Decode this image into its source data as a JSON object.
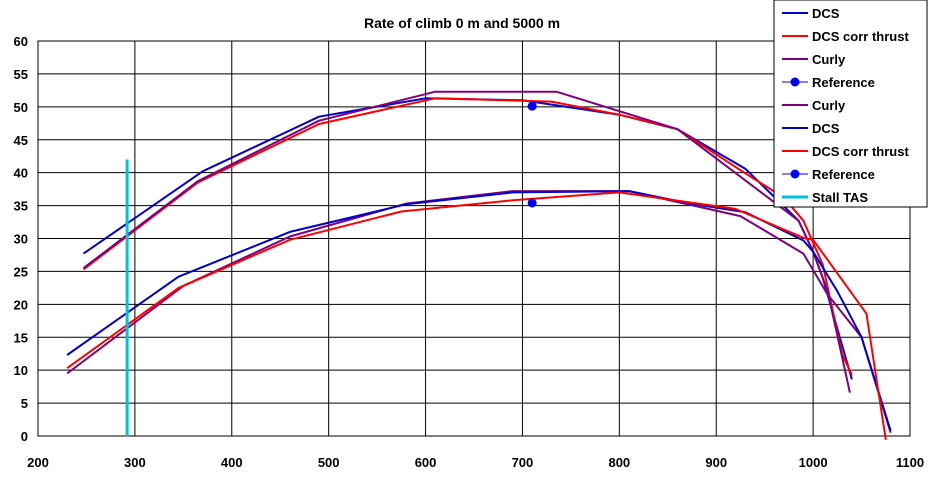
{
  "chart_data": {
    "type": "line",
    "title": "Rate of climb  0 m and 5000 m",
    "xlim": [
      200,
      1100
    ],
    "ylim": [
      0,
      60
    ],
    "x_ticks": [
      "200",
      "300",
      "400",
      "500",
      "600",
      "700",
      "800",
      "900",
      "1000",
      "1100"
    ],
    "y_ticks": [
      "0",
      "5",
      "10",
      "15",
      "20",
      "25",
      "30",
      "35",
      "40",
      "45",
      "50",
      "55",
      "60"
    ],
    "grid": true,
    "legend_position": "top-right",
    "series": [
      {
        "name": "DCS",
        "color": "#0000cc",
        "style": "line",
        "points": [
          [
            247,
            27.7
          ],
          [
            370,
            40.2
          ],
          [
            490,
            48.5
          ],
          [
            600,
            51.3
          ],
          [
            700,
            51.0
          ],
          [
            800,
            48.8
          ],
          [
            860,
            46.6
          ],
          [
            930,
            40.6
          ],
          [
            985,
            32.7
          ],
          [
            1000,
            28.0
          ],
          [
            1010,
            24.0
          ],
          [
            1040,
            8.6
          ]
        ]
      },
      {
        "name": "DCS corr thrust",
        "color": "#ff0000",
        "style": "line",
        "points": [
          [
            247,
            25.3
          ],
          [
            365,
            38.5
          ],
          [
            490,
            47.4
          ],
          [
            610,
            51.3
          ],
          [
            730,
            50.8
          ],
          [
            800,
            48.8
          ],
          [
            860,
            46.6
          ],
          [
            930,
            39.9
          ],
          [
            970,
            36.2
          ],
          [
            990,
            32.7
          ],
          [
            1010,
            26.0
          ],
          [
            1030,
            12.4
          ],
          [
            1040,
            9.3
          ]
        ]
      },
      {
        "name": "Curly",
        "color": "#800080",
        "style": "line",
        "points": [
          [
            247,
            25.5
          ],
          [
            365,
            38.7
          ],
          [
            490,
            47.9
          ],
          [
            610,
            52.3
          ],
          [
            735,
            52.3
          ],
          [
            860,
            46.6
          ],
          [
            985,
            32.7
          ],
          [
            1000,
            28.0
          ],
          [
            1015,
            22.0
          ],
          [
            1038,
            6.6
          ]
        ]
      },
      {
        "name": "Reference",
        "color": "#0000ff",
        "style": "marker",
        "points": [
          [
            710,
            50.1
          ]
        ]
      },
      {
        "name": "Curly",
        "color": "#800080",
        "style": "line",
        "points": [
          [
            230,
            9.5
          ],
          [
            350,
            22.8
          ],
          [
            460,
            30.3
          ],
          [
            580,
            35.3
          ],
          [
            690,
            37.2
          ],
          [
            810,
            37.2
          ],
          [
            925,
            33.4
          ],
          [
            990,
            27.7
          ],
          [
            1015,
            21.5
          ],
          [
            1050,
            15.0
          ],
          [
            1080,
            0.5
          ]
        ]
      },
      {
        "name": "DCS",
        "color": "#0000cc",
        "style": "line",
        "points": [
          [
            230,
            12.3
          ],
          [
            345,
            24.2
          ],
          [
            460,
            31.0
          ],
          [
            580,
            35.2
          ],
          [
            690,
            37.0
          ],
          [
            810,
            37.2
          ],
          [
            870,
            35.4
          ],
          [
            930,
            34.0
          ],
          [
            990,
            29.7
          ],
          [
            1000,
            28.0
          ],
          [
            1025,
            22.0
          ],
          [
            1050,
            15.0
          ],
          [
            1080,
            0.8
          ]
        ]
      },
      {
        "name": "DCS corr thrust",
        "color": "#ff0000",
        "style": "line",
        "points": [
          [
            230,
            10.3
          ],
          [
            345,
            22.5
          ],
          [
            460,
            29.8
          ],
          [
            575,
            34.1
          ],
          [
            690,
            35.8
          ],
          [
            800,
            37.0
          ],
          [
            920,
            34.5
          ],
          [
            990,
            30.1
          ],
          [
            1000,
            29.8
          ],
          [
            1055,
            18.6
          ],
          [
            1075,
            -0.6
          ]
        ]
      },
      {
        "name": "Reference",
        "color": "#0000ff",
        "style": "marker",
        "points": [
          [
            710,
            35.4
          ]
        ]
      },
      {
        "name": "Stall TAS",
        "color": "#00c0e0",
        "style": "line",
        "points": [
          [
            292,
            0
          ],
          [
            292,
            42.0
          ]
        ]
      }
    ]
  }
}
